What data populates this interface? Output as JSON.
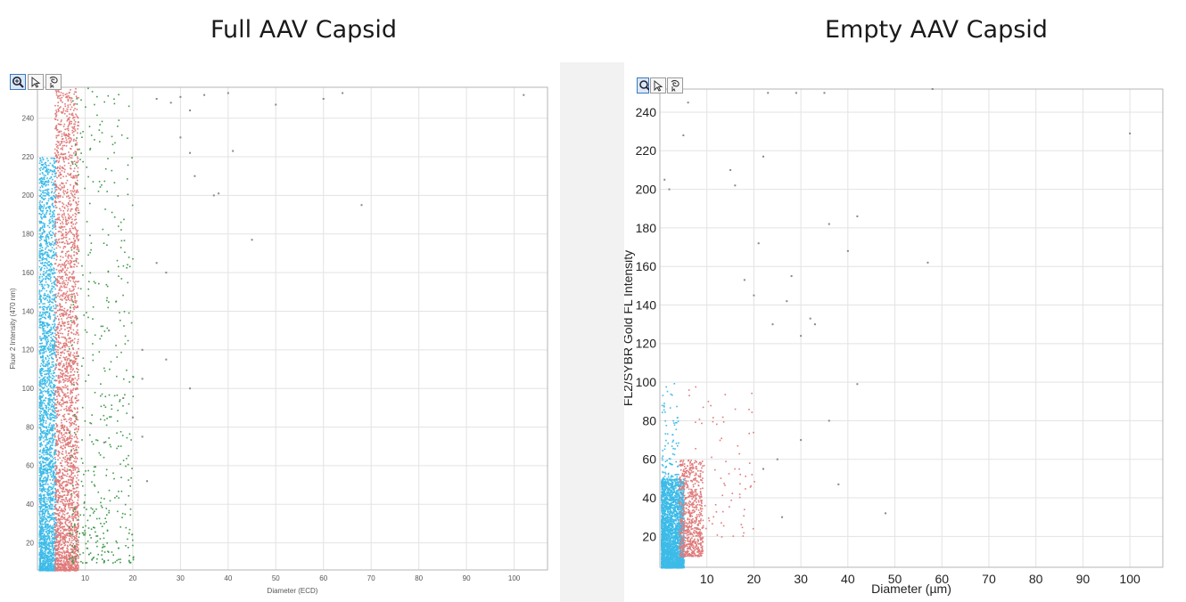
{
  "titles": {
    "left": "Full AAV Capsid",
    "right": "Empty AAV Capsid"
  },
  "toolbar": {
    "icons": [
      "zoom-icon",
      "pointer-icon",
      "lasso-icon"
    ]
  },
  "colors": {
    "blue": "#3cbbe8",
    "red": "#e07a7a",
    "green": "#3f9a4a",
    "gray": "#888888"
  },
  "chart_data": [
    {
      "type": "scatter",
      "xlabel": "Diameter (ECD)",
      "ylabel": "Fluor 2 Intensity (470 nm)",
      "xlim": [
        0,
        107
      ],
      "ylim": [
        6,
        256
      ],
      "xticks": [
        10,
        20,
        30,
        40,
        50,
        60,
        70,
        80,
        90,
        100
      ],
      "yticks": [
        20,
        40,
        60,
        80,
        100,
        120,
        140,
        160,
        180,
        200,
        220,
        240
      ],
      "grid": true,
      "series": [
        {
          "color": "blue",
          "clusters": [
            {
              "x": [
                0.3,
                3.8
              ],
              "y": [
                6,
                220
              ],
              "density": "very-high"
            }
          ]
        },
        {
          "color": "red",
          "clusters": [
            {
              "x": [
                3.5,
                8.5
              ],
              "y": [
                6,
                256
              ],
              "density": "very-high"
            }
          ]
        },
        {
          "color": "green",
          "clusters": [
            {
              "x": [
                6.5,
                20
              ],
              "y": [
                10,
                256
              ],
              "density": "medium"
            }
          ]
        },
        {
          "color": "gray",
          "points": [
            [
              25,
              250
            ],
            [
              28,
              248
            ],
            [
              30,
              251
            ],
            [
              32,
              244
            ],
            [
              35,
              252
            ],
            [
              40,
              253
            ],
            [
              50,
              247
            ],
            [
              60,
              250
            ],
            [
              64,
              253
            ],
            [
              102,
              252
            ],
            [
              30,
              230
            ],
            [
              32,
              222
            ],
            [
              41,
              223
            ],
            [
              37,
              200
            ],
            [
              38,
              201
            ],
            [
              33,
              210
            ],
            [
              68,
              195
            ],
            [
              45,
              177
            ],
            [
              27,
              160
            ],
            [
              25,
              165
            ],
            [
              22,
              120
            ],
            [
              27,
              115
            ],
            [
              22,
              105
            ],
            [
              32,
              100
            ],
            [
              20,
              85
            ],
            [
              23,
              52
            ],
            [
              22,
              75
            ],
            [
              18,
              95
            ],
            [
              15,
              130
            ],
            [
              14,
              72
            ]
          ]
        }
      ]
    },
    {
      "type": "scatter",
      "xlabel": "Diameter (µm)",
      "ylabel": "FL2/SYBR Gold FL Intensity",
      "xlim": [
        0,
        107
      ],
      "ylim": [
        4,
        252
      ],
      "xticks": [
        10,
        20,
        30,
        40,
        50,
        60,
        70,
        80,
        90,
        100
      ],
      "yticks": [
        20,
        40,
        60,
        80,
        100,
        120,
        140,
        160,
        180,
        200,
        220,
        240
      ],
      "grid": true,
      "series": [
        {
          "color": "blue",
          "clusters": [
            {
              "x": [
                0.2,
                5
              ],
              "y": [
                4,
                50
              ],
              "density": "very-high"
            },
            {
              "x": [
                0.3,
                4
              ],
              "y": [
                50,
                100
              ],
              "density": "low"
            }
          ]
        },
        {
          "color": "red",
          "clusters": [
            {
              "x": [
                4,
                9
              ],
              "y": [
                10,
                60
              ],
              "density": "high"
            },
            {
              "x": [
                6,
                20
              ],
              "y": [
                20,
                100
              ],
              "density": "low"
            }
          ]
        },
        {
          "color": "gray",
          "points": [
            [
              1,
              205
            ],
            [
              2,
              200
            ],
            [
              5,
              228
            ],
            [
              6,
              245
            ],
            [
              15,
              210
            ],
            [
              16,
              202
            ],
            [
              22,
              217
            ],
            [
              23,
              250
            ],
            [
              29,
              250
            ],
            [
              35,
              250
            ],
            [
              36,
              182
            ],
            [
              40,
              168
            ],
            [
              42,
              186
            ],
            [
              57,
              162
            ],
            [
              58,
              252
            ],
            [
              100,
              229
            ],
            [
              18,
              153
            ],
            [
              20,
              145
            ],
            [
              21,
              172
            ],
            [
              24,
              130
            ],
            [
              28,
              155
            ],
            [
              32,
              133
            ],
            [
              33,
              130
            ],
            [
              27,
              142
            ],
            [
              30,
              124
            ],
            [
              42,
              99
            ],
            [
              36,
              80
            ],
            [
              38,
              47
            ],
            [
              48,
              32
            ],
            [
              25,
              60
            ],
            [
              30,
              70
            ],
            [
              22,
              55
            ],
            [
              26,
              30
            ]
          ]
        }
      ]
    }
  ]
}
